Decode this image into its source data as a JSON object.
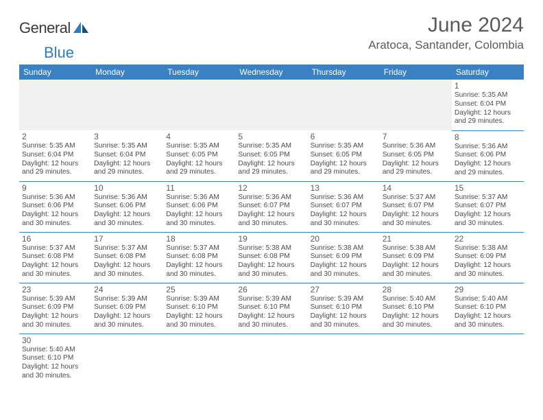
{
  "brand": {
    "name_a": "General",
    "name_b": "Blue"
  },
  "title": "June 2024",
  "location": "Aratoca, Santander, Colombia",
  "colors": {
    "header_bg": "#3b80c2",
    "header_fg": "#ffffff",
    "rule": "#3b80c2",
    "blank_bg": "#f0f0f0",
    "text": "#4a4a4a"
  },
  "weekdays": [
    "Sunday",
    "Monday",
    "Tuesday",
    "Wednesday",
    "Thursday",
    "Friday",
    "Saturday"
  ],
  "weeks": [
    [
      null,
      null,
      null,
      null,
      null,
      null,
      {
        "n": "1",
        "sr": "Sunrise: 5:35 AM",
        "ss": "Sunset: 6:04 PM",
        "d1": "Daylight: 12 hours",
        "d2": "and 29 minutes."
      }
    ],
    [
      {
        "n": "2",
        "sr": "Sunrise: 5:35 AM",
        "ss": "Sunset: 6:04 PM",
        "d1": "Daylight: 12 hours",
        "d2": "and 29 minutes."
      },
      {
        "n": "3",
        "sr": "Sunrise: 5:35 AM",
        "ss": "Sunset: 6:04 PM",
        "d1": "Daylight: 12 hours",
        "d2": "and 29 minutes."
      },
      {
        "n": "4",
        "sr": "Sunrise: 5:35 AM",
        "ss": "Sunset: 6:05 PM",
        "d1": "Daylight: 12 hours",
        "d2": "and 29 minutes."
      },
      {
        "n": "5",
        "sr": "Sunrise: 5:35 AM",
        "ss": "Sunset: 6:05 PM",
        "d1": "Daylight: 12 hours",
        "d2": "and 29 minutes."
      },
      {
        "n": "6",
        "sr": "Sunrise: 5:35 AM",
        "ss": "Sunset: 6:05 PM",
        "d1": "Daylight: 12 hours",
        "d2": "and 29 minutes."
      },
      {
        "n": "7",
        "sr": "Sunrise: 5:36 AM",
        "ss": "Sunset: 6:05 PM",
        "d1": "Daylight: 12 hours",
        "d2": "and 29 minutes."
      },
      {
        "n": "8",
        "sr": "Sunrise: 5:36 AM",
        "ss": "Sunset: 6:06 PM",
        "d1": "Daylight: 12 hours",
        "d2": "and 29 minutes."
      }
    ],
    [
      {
        "n": "9",
        "sr": "Sunrise: 5:36 AM",
        "ss": "Sunset: 6:06 PM",
        "d1": "Daylight: 12 hours",
        "d2": "and 30 minutes."
      },
      {
        "n": "10",
        "sr": "Sunrise: 5:36 AM",
        "ss": "Sunset: 6:06 PM",
        "d1": "Daylight: 12 hours",
        "d2": "and 30 minutes."
      },
      {
        "n": "11",
        "sr": "Sunrise: 5:36 AM",
        "ss": "Sunset: 6:06 PM",
        "d1": "Daylight: 12 hours",
        "d2": "and 30 minutes."
      },
      {
        "n": "12",
        "sr": "Sunrise: 5:36 AM",
        "ss": "Sunset: 6:07 PM",
        "d1": "Daylight: 12 hours",
        "d2": "and 30 minutes."
      },
      {
        "n": "13",
        "sr": "Sunrise: 5:36 AM",
        "ss": "Sunset: 6:07 PM",
        "d1": "Daylight: 12 hours",
        "d2": "and 30 minutes."
      },
      {
        "n": "14",
        "sr": "Sunrise: 5:37 AM",
        "ss": "Sunset: 6:07 PM",
        "d1": "Daylight: 12 hours",
        "d2": "and 30 minutes."
      },
      {
        "n": "15",
        "sr": "Sunrise: 5:37 AM",
        "ss": "Sunset: 6:07 PM",
        "d1": "Daylight: 12 hours",
        "d2": "and 30 minutes."
      }
    ],
    [
      {
        "n": "16",
        "sr": "Sunrise: 5:37 AM",
        "ss": "Sunset: 6:08 PM",
        "d1": "Daylight: 12 hours",
        "d2": "and 30 minutes."
      },
      {
        "n": "17",
        "sr": "Sunrise: 5:37 AM",
        "ss": "Sunset: 6:08 PM",
        "d1": "Daylight: 12 hours",
        "d2": "and 30 minutes."
      },
      {
        "n": "18",
        "sr": "Sunrise: 5:37 AM",
        "ss": "Sunset: 6:08 PM",
        "d1": "Daylight: 12 hours",
        "d2": "and 30 minutes."
      },
      {
        "n": "19",
        "sr": "Sunrise: 5:38 AM",
        "ss": "Sunset: 6:08 PM",
        "d1": "Daylight: 12 hours",
        "d2": "and 30 minutes."
      },
      {
        "n": "20",
        "sr": "Sunrise: 5:38 AM",
        "ss": "Sunset: 6:09 PM",
        "d1": "Daylight: 12 hours",
        "d2": "and 30 minutes."
      },
      {
        "n": "21",
        "sr": "Sunrise: 5:38 AM",
        "ss": "Sunset: 6:09 PM",
        "d1": "Daylight: 12 hours",
        "d2": "and 30 minutes."
      },
      {
        "n": "22",
        "sr": "Sunrise: 5:38 AM",
        "ss": "Sunset: 6:09 PM",
        "d1": "Daylight: 12 hours",
        "d2": "and 30 minutes."
      }
    ],
    [
      {
        "n": "23",
        "sr": "Sunrise: 5:39 AM",
        "ss": "Sunset: 6:09 PM",
        "d1": "Daylight: 12 hours",
        "d2": "and 30 minutes."
      },
      {
        "n": "24",
        "sr": "Sunrise: 5:39 AM",
        "ss": "Sunset: 6:09 PM",
        "d1": "Daylight: 12 hours",
        "d2": "and 30 minutes."
      },
      {
        "n": "25",
        "sr": "Sunrise: 5:39 AM",
        "ss": "Sunset: 6:10 PM",
        "d1": "Daylight: 12 hours",
        "d2": "and 30 minutes."
      },
      {
        "n": "26",
        "sr": "Sunrise: 5:39 AM",
        "ss": "Sunset: 6:10 PM",
        "d1": "Daylight: 12 hours",
        "d2": "and 30 minutes."
      },
      {
        "n": "27",
        "sr": "Sunrise: 5:39 AM",
        "ss": "Sunset: 6:10 PM",
        "d1": "Daylight: 12 hours",
        "d2": "and 30 minutes."
      },
      {
        "n": "28",
        "sr": "Sunrise: 5:40 AM",
        "ss": "Sunset: 6:10 PM",
        "d1": "Daylight: 12 hours",
        "d2": "and 30 minutes."
      },
      {
        "n": "29",
        "sr": "Sunrise: 5:40 AM",
        "ss": "Sunset: 6:10 PM",
        "d1": "Daylight: 12 hours",
        "d2": "and 30 minutes."
      }
    ],
    [
      {
        "n": "30",
        "sr": "Sunrise: 5:40 AM",
        "ss": "Sunset: 6:10 PM",
        "d1": "Daylight: 12 hours",
        "d2": "and 30 minutes."
      },
      null,
      null,
      null,
      null,
      null,
      null
    ]
  ]
}
